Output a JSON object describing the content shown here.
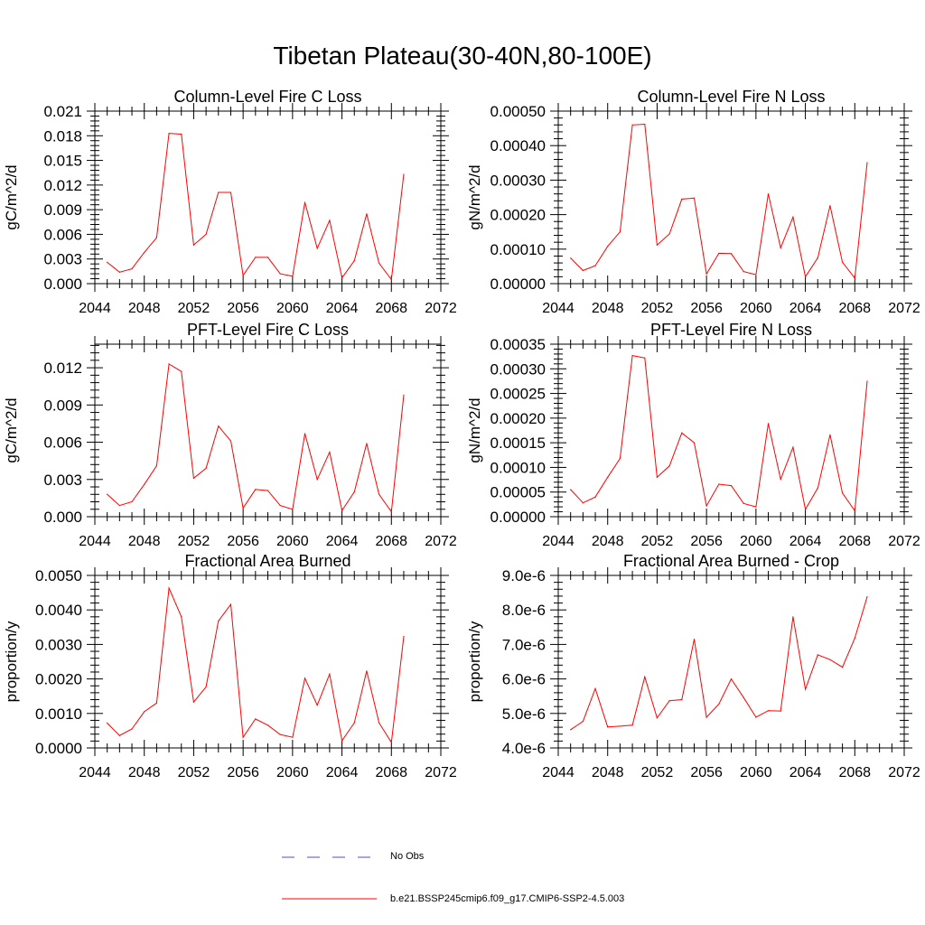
{
  "title": "Tibetan Plateau(30-40N,80-100E)",
  "colors": {
    "series": "#ff0000",
    "obs": "#4d4dcc",
    "axis": "#000000"
  },
  "legend": [
    {
      "label": "No Obs",
      "style": "dashed",
      "color": "#4d4dcc"
    },
    {
      "label": "b.e21.BSSP245cmip6.f09_g17.CMIP6-SSP2-4.5.003",
      "style": "solid",
      "color": "#ff0000"
    }
  ],
  "chart_data": [
    {
      "type": "line",
      "title": "Column-Level Fire C Loss",
      "ylabel": "gC/m^2/d",
      "xlim": [
        2044,
        2072
      ],
      "ylim": [
        0,
        0.021
      ],
      "xticks": [
        "2044",
        "2048",
        "2052",
        "2056",
        "2060",
        "2064",
        "2068",
        "2072"
      ],
      "yticks": [
        {
          "v": 0,
          "label": "0.000"
        },
        {
          "v": 0.003,
          "label": "0.003"
        },
        {
          "v": 0.006,
          "label": "0.006"
        },
        {
          "v": 0.009,
          "label": "0.009"
        },
        {
          "v": 0.012,
          "label": "0.012"
        },
        {
          "v": 0.015,
          "label": "0.015"
        },
        {
          "v": 0.018,
          "label": "0.018"
        },
        {
          "v": 0.021,
          "label": "0.021"
        }
      ],
      "x": [
        2045,
        2046,
        2047,
        2048,
        2049,
        2050,
        2051,
        2052,
        2053,
        2054,
        2055,
        2056,
        2057,
        2058,
        2059,
        2060,
        2061,
        2062,
        2063,
        2064,
        2065,
        2066,
        2067,
        2068,
        2069
      ],
      "values": [
        0.0026,
        0.0014,
        0.0018,
        0.0038,
        0.0056,
        0.0183,
        0.0182,
        0.0047,
        0.006,
        0.0111,
        0.0111,
        0.001,
        0.0032,
        0.0032,
        0.0012,
        0.0009,
        0.0099,
        0.0043,
        0.0077,
        0.0007,
        0.0028,
        0.0085,
        0.0025,
        0.0005,
        0.0133
      ]
    },
    {
      "type": "line",
      "title": "Column-Level Fire N Loss",
      "ylabel": "gN/m^2/d",
      "xlim": [
        2044,
        2072
      ],
      "ylim": [
        0,
        0.0005
      ],
      "xticks": [
        "2044",
        "2048",
        "2052",
        "2056",
        "2060",
        "2064",
        "2068",
        "2072"
      ],
      "yticks": [
        {
          "v": 0,
          "label": "0.00000"
        },
        {
          "v": 0.0001,
          "label": "0.00010"
        },
        {
          "v": 0.0002,
          "label": "0.00020"
        },
        {
          "v": 0.0003,
          "label": "0.00030"
        },
        {
          "v": 0.0004,
          "label": "0.00040"
        },
        {
          "v": 0.0005,
          "label": "0.00050"
        }
      ],
      "x": [
        2045,
        2046,
        2047,
        2048,
        2049,
        2050,
        2051,
        2052,
        2053,
        2054,
        2055,
        2056,
        2057,
        2058,
        2059,
        2060,
        2061,
        2062,
        2063,
        2064,
        2065,
        2066,
        2067,
        2068,
        2069
      ],
      "values": [
        7.4e-05,
        3.8e-05,
        5.2e-05,
        0.000108,
        0.00015,
        0.00046,
        0.000462,
        0.000112,
        0.000144,
        0.000245,
        0.000248,
        2.8e-05,
        8.8e-05,
        8.7e-05,
        3.5e-05,
        2.6e-05,
        0.00026,
        0.000104,
        0.000193,
        2e-05,
        7.5e-05,
        0.000226,
        6.2e-05,
        1.6e-05,
        0.000351
      ]
    },
    {
      "type": "line",
      "title": "PFT-Level Fire C Loss",
      "ylabel": "gC/m^2/d",
      "xlim": [
        2044,
        2072
      ],
      "ylim": [
        0,
        0.0139
      ],
      "xticks": [
        "2044",
        "2048",
        "2052",
        "2056",
        "2060",
        "2064",
        "2068",
        "2072"
      ],
      "yticks": [
        {
          "v": 0,
          "label": "0.000"
        },
        {
          "v": 0.003,
          "label": "0.003"
        },
        {
          "v": 0.006,
          "label": "0.006"
        },
        {
          "v": 0.009,
          "label": "0.009"
        },
        {
          "v": 0.012,
          "label": "0.012"
        }
      ],
      "x": [
        2045,
        2046,
        2047,
        2048,
        2049,
        2050,
        2051,
        2052,
        2053,
        2054,
        2055,
        2056,
        2057,
        2058,
        2059,
        2060,
        2061,
        2062,
        2063,
        2064,
        2065,
        2066,
        2067,
        2068,
        2069
      ],
      "values": [
        0.0018,
        0.0009,
        0.0012,
        0.0026,
        0.0041,
        0.0123,
        0.0117,
        0.0031,
        0.0039,
        0.0073,
        0.0061,
        0.0007,
        0.0022,
        0.0021,
        0.0009,
        0.0006,
        0.0067,
        0.003,
        0.0052,
        0.0005,
        0.002,
        0.0059,
        0.0018,
        0.0004,
        0.0098
      ]
    },
    {
      "type": "line",
      "title": "PFT-Level Fire N Loss",
      "ylabel": "gN/m^2/d",
      "xlim": [
        2044,
        2072
      ],
      "ylim": [
        0,
        0.00035
      ],
      "xticks": [
        "2044",
        "2048",
        "2052",
        "2056",
        "2060",
        "2064",
        "2068",
        "2072"
      ],
      "yticks": [
        {
          "v": 0,
          "label": "0.00000"
        },
        {
          "v": 5e-05,
          "label": "0.00005"
        },
        {
          "v": 0.0001,
          "label": "0.00010"
        },
        {
          "v": 0.00015,
          "label": "0.00015"
        },
        {
          "v": 0.0002,
          "label": "0.00020"
        },
        {
          "v": 0.00025,
          "label": "0.00025"
        },
        {
          "v": 0.0003,
          "label": "0.00030"
        },
        {
          "v": 0.00035,
          "label": "0.00035"
        }
      ],
      "x": [
        2045,
        2046,
        2047,
        2048,
        2049,
        2050,
        2051,
        2052,
        2053,
        2054,
        2055,
        2056,
        2057,
        2058,
        2059,
        2060,
        2061,
        2062,
        2063,
        2064,
        2065,
        2066,
        2067,
        2068,
        2069
      ],
      "values": [
        5.5e-05,
        2.8e-05,
        4e-05,
        8e-05,
        0.000118,
        0.000327,
        0.000322,
        8e-05,
        0.000103,
        0.00017,
        0.00015,
        2.2e-05,
        6.6e-05,
        6.3e-05,
        2.7e-05,
        2e-05,
        0.000189,
        7.6e-05,
        0.000141,
        1.5e-05,
        5.8e-05,
        0.000166,
        4.8e-05,
        1.2e-05,
        0.000275
      ]
    },
    {
      "type": "line",
      "title": "Fractional Area Burned",
      "ylabel": "proportion/y",
      "xlim": [
        2044,
        2072
      ],
      "ylim": [
        0,
        0.005
      ],
      "xticks": [
        "2044",
        "2048",
        "2052",
        "2056",
        "2060",
        "2064",
        "2068",
        "2072"
      ],
      "yticks": [
        {
          "v": 0,
          "label": "0.0000"
        },
        {
          "v": 0.001,
          "label": "0.0010"
        },
        {
          "v": 0.002,
          "label": "0.0020"
        },
        {
          "v": 0.003,
          "label": "0.0030"
        },
        {
          "v": 0.004,
          "label": "0.0040"
        },
        {
          "v": 0.005,
          "label": "0.0050"
        }
      ],
      "x": [
        2045,
        2046,
        2047,
        2048,
        2049,
        2050,
        2051,
        2052,
        2053,
        2054,
        2055,
        2056,
        2057,
        2058,
        2059,
        2060,
        2061,
        2062,
        2063,
        2064,
        2065,
        2066,
        2067,
        2068,
        2069
      ],
      "values": [
        0.00072,
        0.00036,
        0.00055,
        0.00105,
        0.0013,
        0.00463,
        0.0038,
        0.00133,
        0.00177,
        0.00368,
        0.00416,
        0.00031,
        0.00084,
        0.00066,
        0.00039,
        0.00031,
        0.00202,
        0.00124,
        0.00214,
        0.00021,
        0.00073,
        0.00223,
        0.00073,
        0.00016,
        0.00323
      ]
    },
    {
      "type": "line",
      "title": "Fractional Area Burned - Crop",
      "ylabel": "proportion/y",
      "xlim": [
        2044,
        2072
      ],
      "ylim": [
        4e-06,
        9e-06
      ],
      "xticks": [
        "2044",
        "2048",
        "2052",
        "2056",
        "2060",
        "2064",
        "2068",
        "2072"
      ],
      "yticks": [
        {
          "v": 4e-06,
          "label": "4.0e-6"
        },
        {
          "v": 5e-06,
          "label": "5.0e-6"
        },
        {
          "v": 6e-06,
          "label": "6.0e-6"
        },
        {
          "v": 7e-06,
          "label": "7.0e-6"
        },
        {
          "v": 8e-06,
          "label": "8.0e-6"
        },
        {
          "v": 9e-06,
          "label": "9.0e-6"
        }
      ],
      "x": [
        2045,
        2046,
        2047,
        2048,
        2049,
        2050,
        2051,
        2052,
        2053,
        2054,
        2055,
        2056,
        2057,
        2058,
        2059,
        2060,
        2061,
        2062,
        2063,
        2064,
        2065,
        2066,
        2067,
        2068,
        2069
      ],
      "values": [
        4.53e-06,
        4.77e-06,
        5.72e-06,
        4.61e-06,
        4.63e-06,
        4.66e-06,
        6.06e-06,
        4.87e-06,
        5.37e-06,
        5.4e-06,
        7.15e-06,
        4.89e-06,
        5.27e-06,
        6e-06,
        5.46e-06,
        4.89e-06,
        5.08e-06,
        5.07e-06,
        7.8e-06,
        5.7e-06,
        6.7e-06,
        6.56e-06,
        6.34e-06,
        7.18e-06,
        8.38e-06
      ]
    }
  ]
}
